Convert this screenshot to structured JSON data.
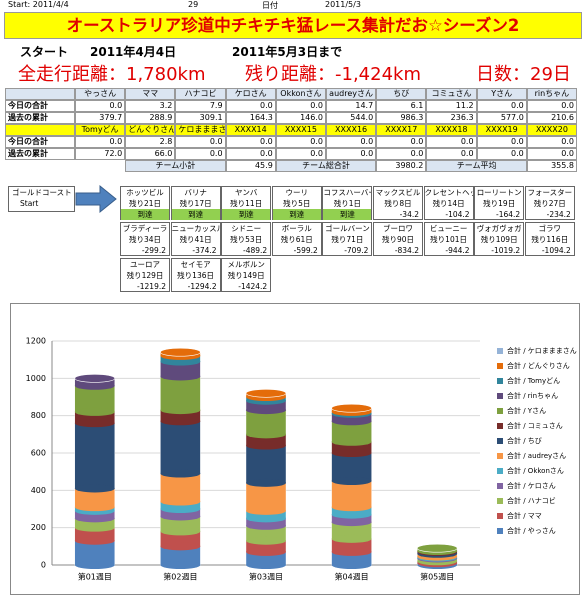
{
  "topline": {
    "start": "Start: 2011/4/4",
    "days": "29",
    "date_label": "日付",
    "date": "2011/5/3"
  },
  "banner": "オーストラリア珍道中チキチキ猛レース集計だお☆シーズン2",
  "period": {
    "start_label": "スタート",
    "start_date": "2011年4月4日",
    "end": "2011年5月3日まで"
  },
  "summary": {
    "total": "全走行距離：1,780km",
    "remaining": "残り距離：-1,424km",
    "days": "日数：29日"
  },
  "table": {
    "rows": [
      {
        "cells": [
          "やっさん",
          "ママ",
          "ハナコビ",
          "ケロさん",
          "Okkonさん",
          "audreyさん",
          "ちび",
          "コミュさん",
          "Yさん",
          "rinちゃん"
        ]
      },
      {
        "label": "今日の合計",
        "cells": [
          "0.0",
          "3.2",
          "7.9",
          "0.0",
          "0.0",
          "14.7",
          "6.1",
          "11.2",
          "0.0",
          "0.0"
        ]
      },
      {
        "label": "過去の累計",
        "cells": [
          "379.7",
          "288.9",
          "309.1",
          "164.3",
          "146.0",
          "544.0",
          "986.3",
          "236.3",
          "577.0",
          "210.6"
        ]
      },
      {
        "cells": [
          "Tomyどん",
          "どんぐりさん",
          "ケロまままさん",
          "XXXX14",
          "XXXX15",
          "XXXX16",
          "XXXX17",
          "XXXX18",
          "XXXX19",
          "XXXX20"
        ]
      },
      {
        "label": "今日の合計",
        "cells": [
          "0.0",
          "2.8",
          "0.0",
          "0.0",
          "0.0",
          "0.0",
          "0.0",
          "0.0",
          "0.0",
          "0.0"
        ]
      },
      {
        "label": "過去の累計",
        "cells": [
          "72.0",
          "66.0",
          "0.0",
          "0.0",
          "0.0",
          "0.0",
          "0.0",
          "0.0",
          "0.0",
          "0.0"
        ]
      }
    ],
    "team": [
      "チーム小計",
      "45.9",
      "チーム総合計",
      "3980.2",
      "チーム平均",
      "355.8"
    ]
  },
  "route": {
    "start": [
      "ゴールドコースト",
      "Start"
    ],
    "stops": [
      {
        "name": "ホッツビル",
        "remain": "残り21日",
        "status": "到達"
      },
      {
        "name": "バリナ",
        "remain": "残り17日",
        "status": "到達"
      },
      {
        "name": "ヤンバ",
        "remain": "残り11日",
        "status": "到達"
      },
      {
        "name": "ウーリ",
        "remain": "残り5日",
        "status": "到達"
      },
      {
        "name": "コフスハーバー",
        "remain": "残り1日",
        "status": "到達"
      },
      {
        "name": "マックスビル",
        "remain": "残り8日",
        "status": "-34.2"
      },
      {
        "name": "クレセントヘッド",
        "remain": "残り14日",
        "status": "-104.2"
      },
      {
        "name": "ローリートン",
        "remain": "残り19日",
        "status": "-164.2"
      },
      {
        "name": "フォースター",
        "remain": "残り27日",
        "status": "-234.2"
      },
      {
        "name": "ブラディーラ",
        "remain": "残り34日",
        "status": "-299.2"
      },
      {
        "name": "ニューカッスル",
        "remain": "残り41日",
        "status": "-374.2"
      },
      {
        "name": "シドニー",
        "remain": "残り53日",
        "status": "-489.2"
      },
      {
        "name": "ボーラル",
        "remain": "残り61日",
        "status": "-599.2"
      },
      {
        "name": "ゴールバーン",
        "remain": "残り71日",
        "status": "-709.2"
      },
      {
        "name": "ブーロワ",
        "remain": "残り90日",
        "status": "-834.2"
      },
      {
        "name": "ビューニー",
        "remain": "残り101日",
        "status": "-944.2"
      },
      {
        "name": "ヴォガヴォガ",
        "remain": "残り109日",
        "status": "-1019.2"
      },
      {
        "name": "ゴラワ",
        "remain": "残り116日",
        "status": "-1094.2"
      },
      {
        "name": "ユーロア",
        "remain": "残り129日",
        "status": "-1219.2"
      },
      {
        "name": "セイモア",
        "remain": "残り136日",
        "status": "-1294.2"
      },
      {
        "name": "メルボルン",
        "remain": "残り149日",
        "status": "-1424.2"
      }
    ]
  },
  "chart_data": {
    "type": "bar",
    "stacked": true,
    "categories": [
      "第01週目",
      "第02週目",
      "第03週目",
      "第04週目",
      "第05週目"
    ],
    "ylim": [
      0,
      1200
    ],
    "yticks": [
      0,
      200,
      400,
      600,
      800,
      1000,
      1200
    ],
    "grid": true,
    "legend": "right",
    "series": [
      {
        "name": "合計 / やっさん",
        "color": "#4f81bd",
        "values": [
          130,
          100,
          70,
          70,
          10
        ]
      },
      {
        "name": "合計 / ママ",
        "color": "#c0504d",
        "values": [
          70,
          80,
          60,
          70,
          10
        ]
      },
      {
        "name": "合計 / ハナコビ",
        "color": "#9bbb59",
        "values": [
          50,
          80,
          80,
          90,
          15
        ]
      },
      {
        "name": "合計 / ケロさん",
        "color": "#8064a2",
        "values": [
          40,
          40,
          40,
          40,
          5
        ]
      },
      {
        "name": "合計 / Okkonさん",
        "color": "#4bacc6",
        "values": [
          20,
          40,
          40,
          40,
          5
        ]
      },
      {
        "name": "合計 / audreyさん",
        "color": "#f79646",
        "values": [
          100,
          150,
          150,
          140,
          15
        ]
      },
      {
        "name": "合計 / ちび",
        "color": "#2c4d75",
        "values": [
          350,
          280,
          200,
          150,
          10
        ]
      },
      {
        "name": "合計 / コミュさん",
        "color": "#772c2a",
        "values": [
          60,
          60,
          60,
          60,
          5
        ]
      },
      {
        "name": "合計 / Yさん",
        "color": "#7ea03f",
        "values": [
          140,
          180,
          130,
          110,
          15
        ]
      },
      {
        "name": "合計 / rinちゃん",
        "color": "#5f4a7c",
        "values": [
          40,
          80,
          50,
          40,
          0
        ]
      },
      {
        "name": "合計 / Tomyどん",
        "color": "#31859c",
        "values": [
          0,
          30,
          20,
          10,
          0
        ]
      },
      {
        "name": "合計 / どんぐりさん",
        "color": "#e46c0a",
        "values": [
          0,
          20,
          20,
          20,
          0
        ]
      },
      {
        "name": "合計 / ケロまままさん",
        "color": "#95b3d7",
        "values": [
          0,
          0,
          0,
          0,
          0
        ]
      }
    ]
  }
}
